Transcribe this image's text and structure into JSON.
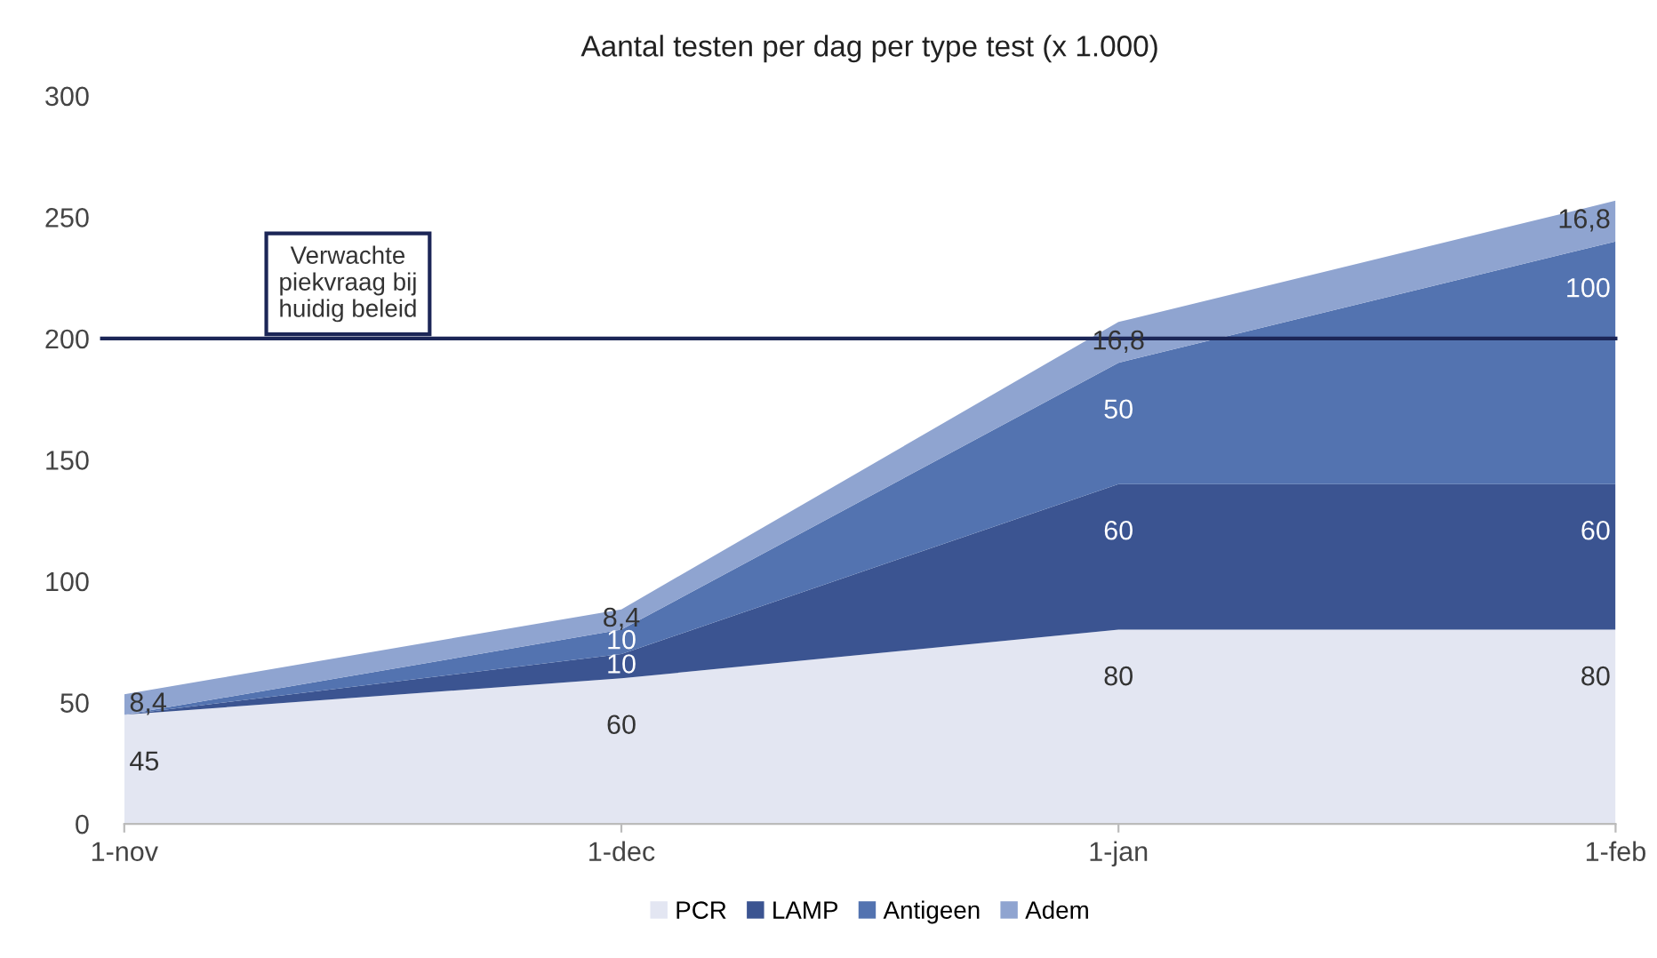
{
  "chart_data": {
    "type": "area",
    "stacked": true,
    "title": "Aantal testen per dag per type test (x 1.000)",
    "categories": [
      "1-nov",
      "1-dec",
      "1-jan",
      "1-feb"
    ],
    "series": [
      {
        "name": "PCR",
        "color": "#e3e6f2",
        "values": [
          45,
          60,
          80,
          80
        ],
        "value_labels": [
          "45",
          "60",
          "80",
          "80"
        ]
      },
      {
        "name": "LAMP",
        "color": "#3b5491",
        "values": [
          0,
          10,
          60,
          60
        ],
        "value_labels": [
          null,
          "10",
          "60",
          "60"
        ]
      },
      {
        "name": "Antigeen",
        "color": "#5373b0",
        "values": [
          0,
          10,
          50,
          100
        ],
        "value_labels": [
          null,
          "10",
          "50",
          "100"
        ]
      },
      {
        "name": "Adem",
        "color": "#8fa4d0",
        "values": [
          8.4,
          8.4,
          16.8,
          16.8
        ],
        "value_labels": [
          "8,4",
          "8,4",
          "16,8",
          "16,8"
        ]
      }
    ],
    "ylim": [
      0,
      300
    ],
    "yticks": [
      0,
      50,
      100,
      150,
      200,
      250,
      300
    ],
    "ref_lines": [
      {
        "axis": "y",
        "value": 200,
        "label": "Verwachte\npiekvraag bij\nhuidig beleid",
        "color": "#1c2657"
      }
    ],
    "grid": false,
    "legend": "bottom"
  }
}
